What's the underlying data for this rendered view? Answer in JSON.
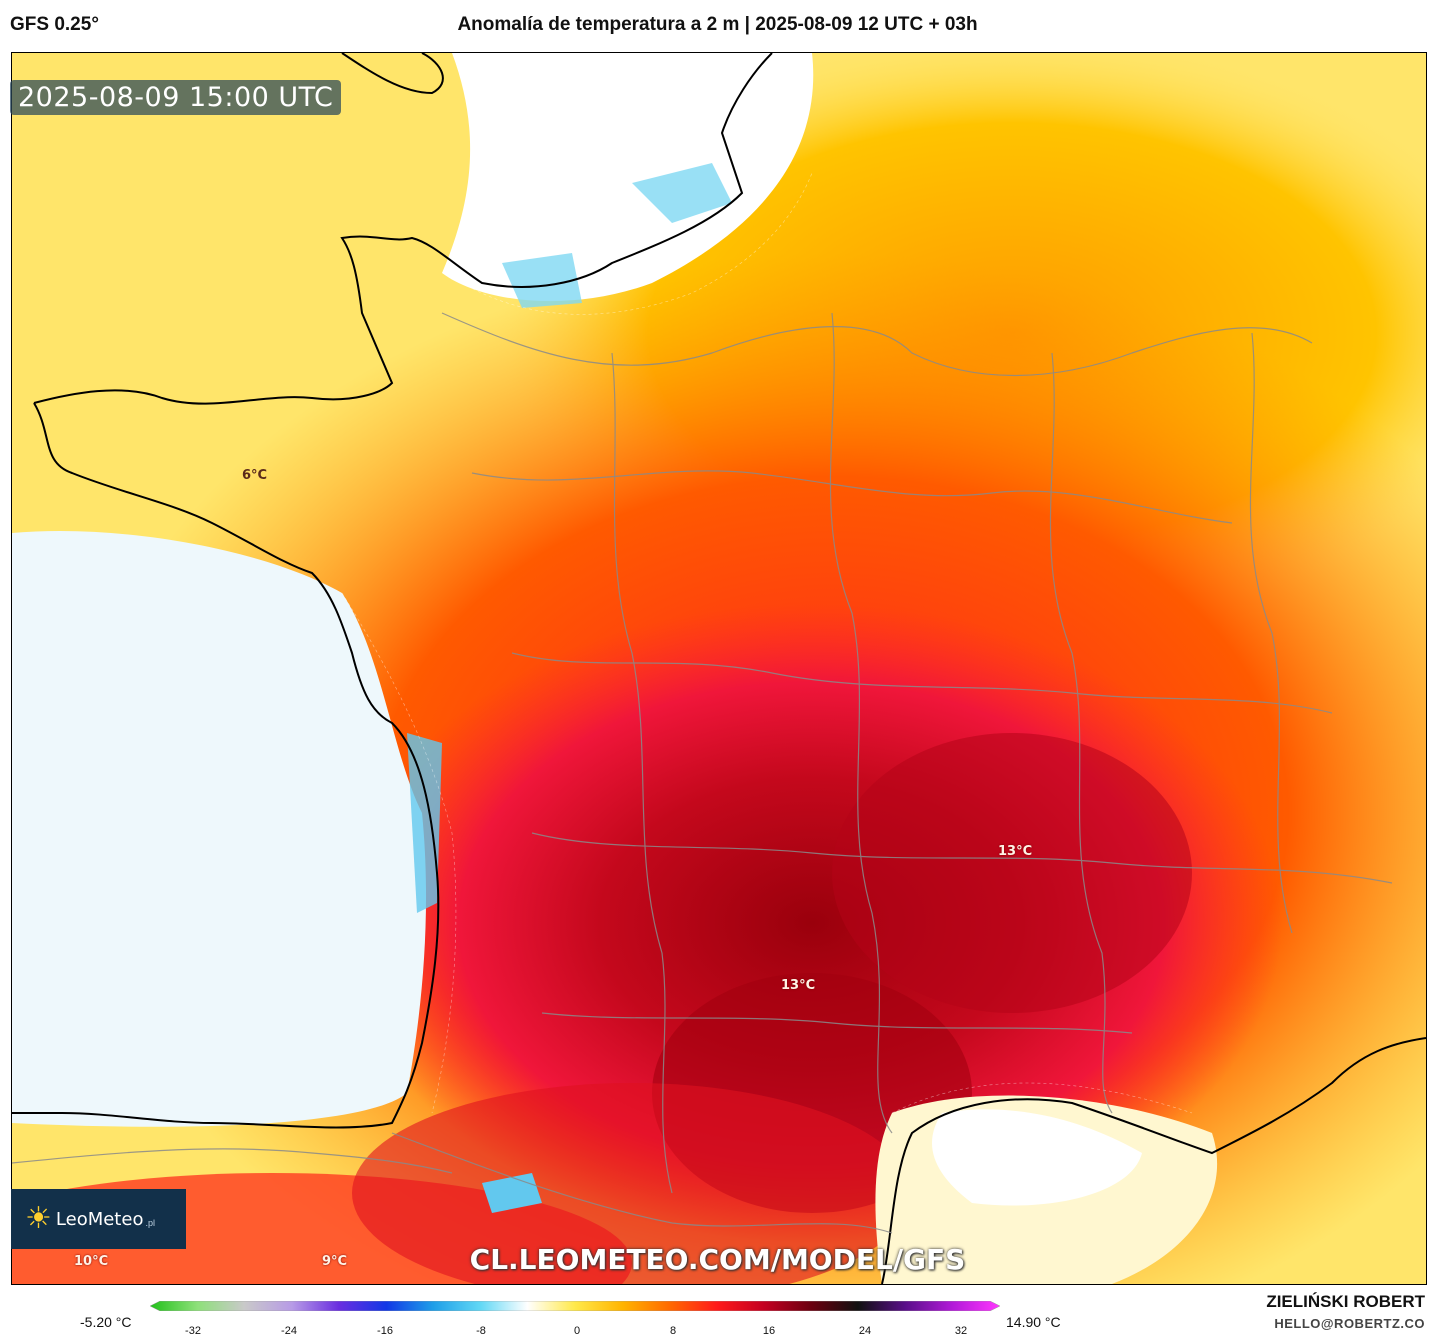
{
  "header": {
    "model": "GFS 0.25°",
    "title": "Anomalía de temperatura a 2 m | 2025-08-09 12 UTC + 03h"
  },
  "map": {
    "valid_time": "2025-08-09 15:00 UTC",
    "labels": [
      {
        "text": "6°C",
        "id": "brittany"
      },
      {
        "text": "13°C",
        "id": "rhone"
      },
      {
        "text": "13°C",
        "id": "massif-central"
      },
      {
        "text": "10°C",
        "id": "spain-west"
      },
      {
        "text": "9°C",
        "id": "spain-central"
      }
    ],
    "source_url": "CL.LEOMETEO.COM/MODEL/GFS",
    "brand": {
      "name": "LeoMeteo",
      "tld": ".pl",
      "icon": "sun-icon"
    }
  },
  "legend": {
    "min_value": "-5.20 °C",
    "max_value": "14.90 °C",
    "ticks": [
      "-32",
      "-24",
      "-16",
      "-8",
      "0",
      "8",
      "16",
      "24",
      "32"
    ],
    "gradient_colors": [
      "#22c11a",
      "#8ee07a",
      "#c9c9c9",
      "#b79be6",
      "#6a2ee0",
      "#1238e6",
      "#1e9ee8",
      "#62d8f5",
      "#ffffff",
      "#ffe94a",
      "#ffb400",
      "#ff6a00",
      "#ff1a1a",
      "#c40021",
      "#6b0010",
      "#111111",
      "#5a0f8a",
      "#b21ad8",
      "#ff36ff"
    ]
  },
  "footer": {
    "author": "ZIELIŃSKI ROBERT",
    "contact": "HELLO@ROBERTZ.CO"
  },
  "colors": {
    "sea_cold": "#eef8fc",
    "anomaly_low": "#ffe56a",
    "anomaly_mid": "#ff9a00",
    "anomaly_high": "#ff2a2a",
    "anomaly_peak": "#a0000e"
  }
}
